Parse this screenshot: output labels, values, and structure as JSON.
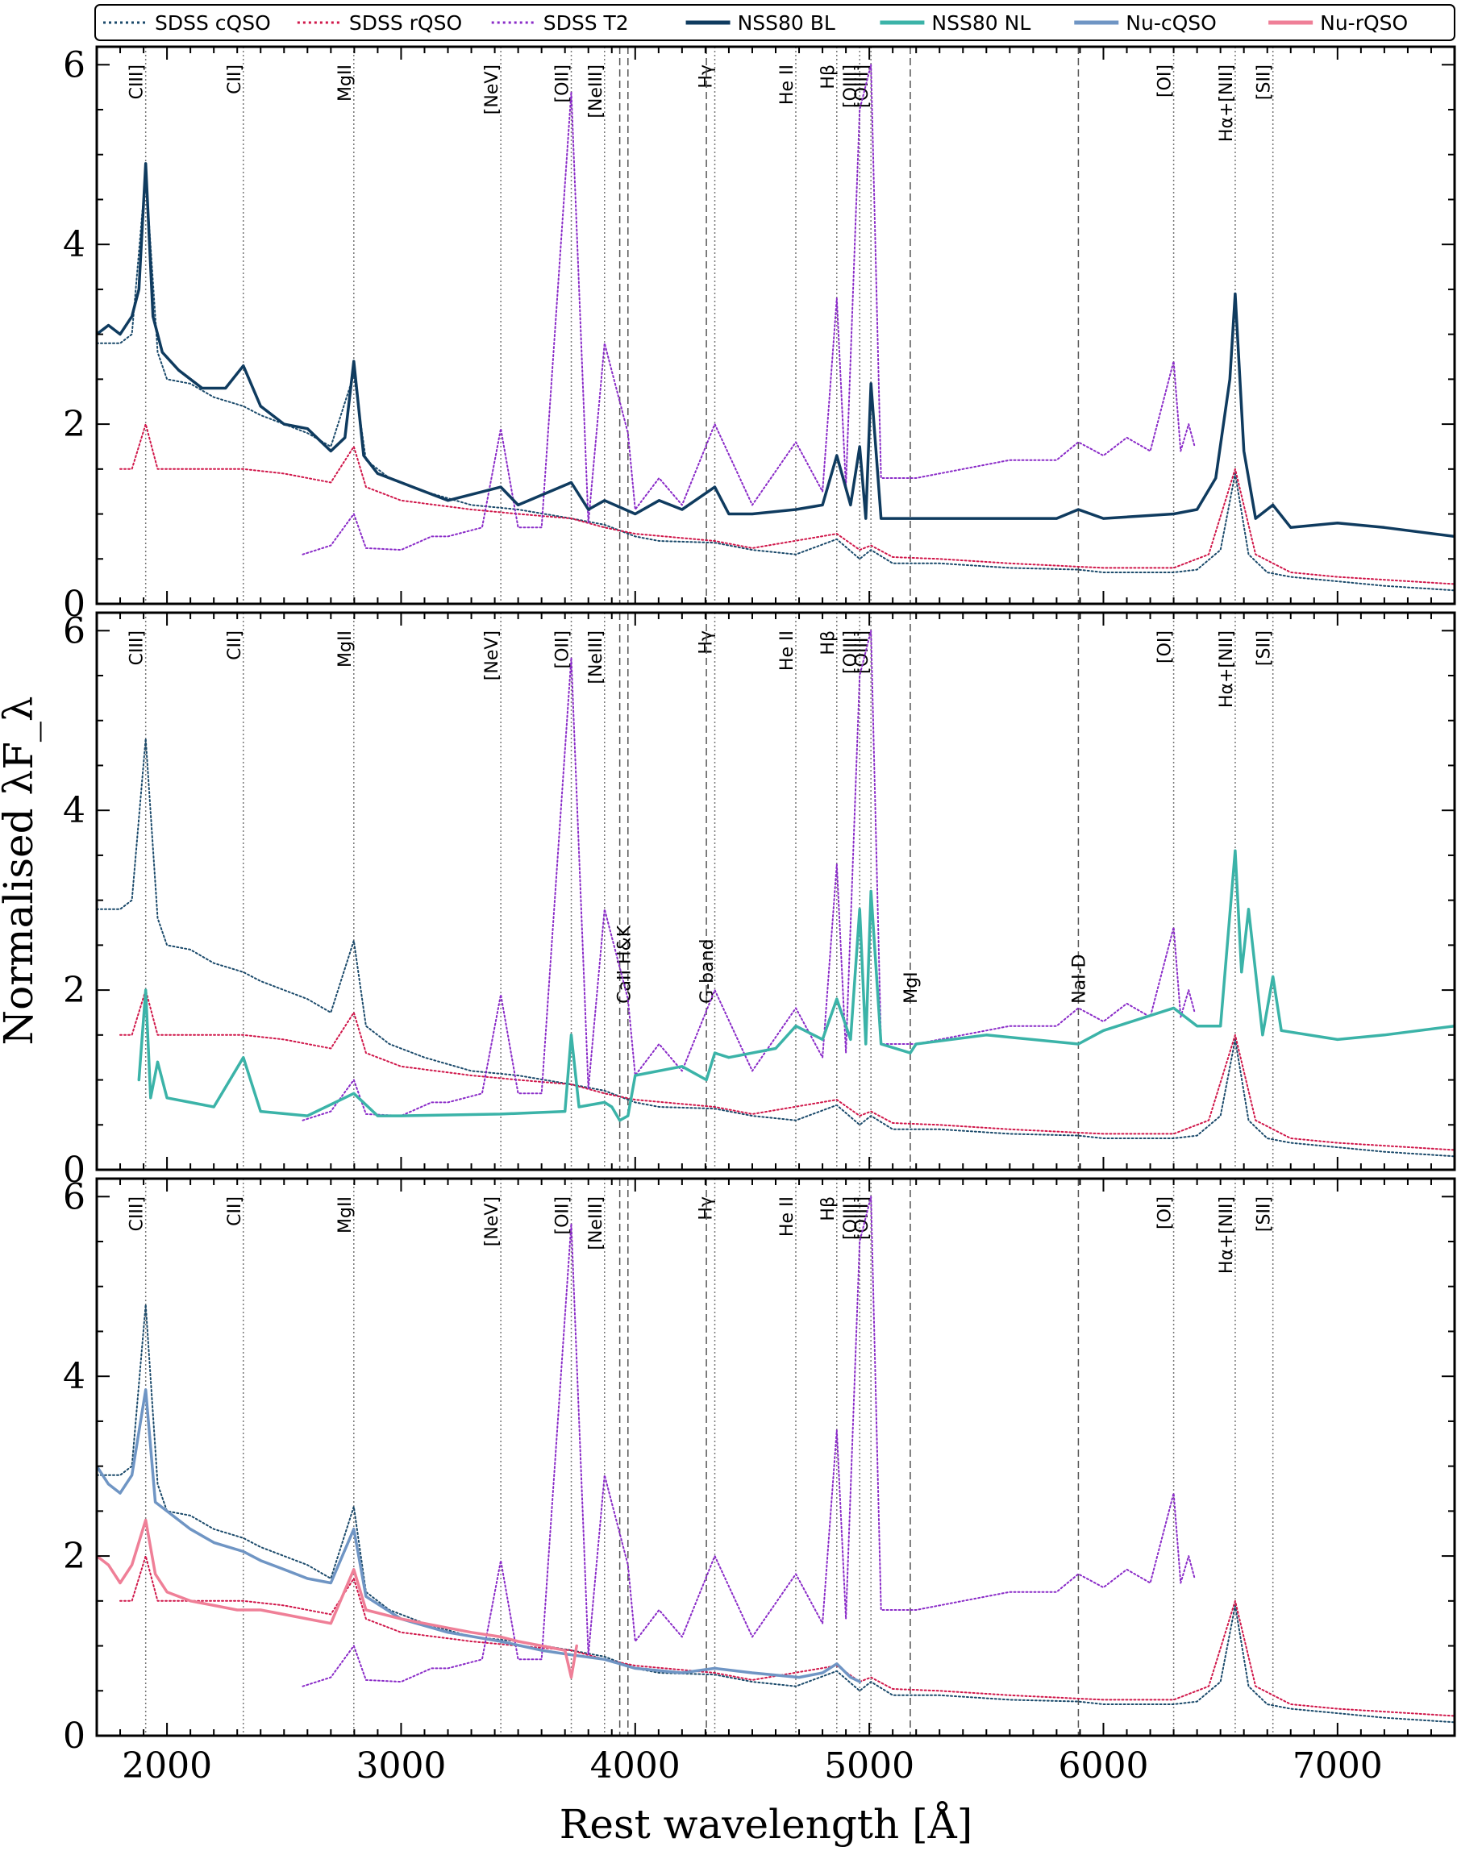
{
  "chart_data": {
    "type": "line",
    "xlabel": "Rest wavelength [Å]",
    "ylabel": "Normalised λF_λ",
    "xlim": [
      1700,
      7500
    ],
    "ylim": [
      0,
      6.2
    ],
    "x_ticks": [
      2000,
      3000,
      4000,
      5000,
      6000,
      7000
    ],
    "x_tick_labels": [
      "2000",
      "3000",
      "4000",
      "5000",
      "6000",
      "7000"
    ],
    "y_ticks": [
      0,
      2,
      4,
      6
    ],
    "y_tick_labels": [
      "0",
      "2",
      "4",
      "6"
    ],
    "legend": [
      {
        "key": "sdss_cqso",
        "label": "SDSS cQSO",
        "style": "dotted",
        "color": "#1b4a6b"
      },
      {
        "key": "sdss_rqso",
        "label": "SDSS rQSO",
        "style": "dotted",
        "color": "#d0174a"
      },
      {
        "key": "sdss_t2",
        "label": "SDSS T2",
        "style": "dotted",
        "color": "#8a2bc8"
      },
      {
        "key": "nss80_bl",
        "label": "NSS80 BL",
        "style": "solid",
        "color": "#0f3b5f"
      },
      {
        "key": "nss80_nl",
        "label": "NSS80 NL",
        "style": "solid",
        "color": "#3bb3a8"
      },
      {
        "key": "nu_cqso",
        "label": "Nu-cQSO",
        "style": "solid",
        "color": "#6f95c4"
      },
      {
        "key": "nu_rqso",
        "label": "Nu-rQSO",
        "style": "solid",
        "color": "#ef7f97"
      }
    ],
    "emission_lines": [
      {
        "label": "CIII]",
        "x": 1909
      },
      {
        "label": "CII]",
        "x": 2326
      },
      {
        "label": "MgII",
        "x": 2798
      },
      {
        "label": "[NeV]",
        "x": 3426
      },
      {
        "label": "[OII]",
        "x": 3727
      },
      {
        "label": "[NeIII]",
        "x": 3869
      },
      {
        "label": "Hγ",
        "x": 4340
      },
      {
        "label": "He II",
        "x": 4686
      },
      {
        "label": "Hβ",
        "x": 4861
      },
      {
        "label": "[OIII]",
        "x": 4959
      },
      {
        "label": "[OIII]",
        "x": 5007
      },
      {
        "label": "[OI]",
        "x": 6300
      },
      {
        "label": "Hα+[NII]",
        "x": 6563
      },
      {
        "label": "[SII]",
        "x": 6724
      }
    ],
    "absorption_lines": [
      3934,
      3969,
      4304,
      5175,
      5893
    ],
    "absorption_labels": [
      {
        "label": "CaII H&K",
        "x": 3951
      },
      {
        "label": "G-band",
        "x": 4304
      },
      {
        "label": "MgI",
        "x": 5175
      },
      {
        "label": "NaI-D",
        "x": 5893
      }
    ],
    "template_data": {
      "sdss_cqso": {
        "x": [
          1700,
          1800,
          1850,
          1909,
          1960,
          2000,
          2100,
          2200,
          2326,
          2400,
          2500,
          2600,
          2700,
          2798,
          2850,
          2950,
          3100,
          3300,
          3500,
          3727,
          3869,
          4000,
          4102,
          4340,
          4500,
          4686,
          4861,
          4959,
          5007,
          5100,
          5300,
          5600,
          5893,
          6000,
          6300,
          6400,
          6500,
          6563,
          6620,
          6700,
          6800,
          7000,
          7200,
          7500
        ],
        "y": [
          2.9,
          2.9,
          3.0,
          4.8,
          2.8,
          2.5,
          2.45,
          2.3,
          2.2,
          2.1,
          2.0,
          1.9,
          1.75,
          2.55,
          1.6,
          1.4,
          1.25,
          1.1,
          1.05,
          0.95,
          0.88,
          0.75,
          0.7,
          0.68,
          0.6,
          0.55,
          0.72,
          0.5,
          0.6,
          0.45,
          0.45,
          0.4,
          0.38,
          0.35,
          0.35,
          0.38,
          0.6,
          1.45,
          0.55,
          0.35,
          0.3,
          0.25,
          0.2,
          0.15
        ]
      },
      "sdss_rqso": {
        "x": [
          1800,
          1850,
          1909,
          1960,
          2000,
          2200,
          2326,
          2500,
          2700,
          2798,
          2850,
          3000,
          3300,
          3500,
          3727,
          3869,
          4000,
          4340,
          4500,
          4861,
          4959,
          5007,
          5100,
          5300,
          5600,
          6000,
          6300,
          6450,
          6563,
          6650,
          6800,
          7000,
          7500
        ],
        "y": [
          1.5,
          1.5,
          2.0,
          1.5,
          1.5,
          1.5,
          1.5,
          1.45,
          1.35,
          1.75,
          1.3,
          1.15,
          1.05,
          1.0,
          0.95,
          0.85,
          0.78,
          0.7,
          0.62,
          0.78,
          0.6,
          0.65,
          0.52,
          0.5,
          0.45,
          0.4,
          0.4,
          0.55,
          1.5,
          0.55,
          0.35,
          0.3,
          0.22
        ]
      },
      "sdss_t2": {
        "x": [
          2580,
          2700,
          2798,
          2850,
          3000,
          3130,
          3200,
          3346,
          3426,
          3500,
          3600,
          3727,
          3800,
          3869,
          3969,
          4000,
          4102,
          4200,
          4340,
          4500,
          4686,
          4800,
          4861,
          4900,
          4959,
          5007,
          5050,
          5200,
          5400,
          5600,
          5800,
          5893,
          6000,
          6100,
          6200,
          6300,
          6330,
          6364,
          6390
        ],
        "y": [
          0.55,
          0.65,
          1.0,
          0.62,
          0.6,
          0.75,
          0.75,
          0.85,
          1.95,
          0.85,
          0.85,
          5.7,
          0.9,
          2.9,
          1.9,
          1.05,
          1.4,
          1.1,
          2.0,
          1.1,
          1.8,
          1.25,
          3.4,
          1.3,
          5.5,
          6.0,
          1.4,
          1.4,
          1.5,
          1.6,
          1.6,
          1.8,
          1.65,
          1.85,
          1.7,
          2.7,
          1.7,
          2.0,
          1.75
        ]
      }
    },
    "panels": [
      {
        "panel": "top",
        "series": [
          {
            "key": "nss80_bl",
            "x": [
              1700,
              1750,
              1800,
              1850,
              1880,
              1909,
              1940,
              1980,
              2050,
              2150,
              2250,
              2326,
              2400,
              2500,
              2600,
              2700,
              2760,
              2798,
              2840,
              2900,
              3000,
              3200,
              3426,
              3500,
              3727,
              3800,
              3869,
              4000,
              4102,
              4200,
              4340,
              4400,
              4500,
              4686,
              4800,
              4861,
              4920,
              4959,
              4985,
              5007,
              5050,
              5200,
              5500,
              5800,
              5893,
              6000,
              6300,
              6400,
              6480,
              6540,
              6563,
              6600,
              6650,
              6724,
              6800,
              7000,
              7200,
              7500
            ],
            "y": [
              3.0,
              3.1,
              3.0,
              3.2,
              3.5,
              4.9,
              3.2,
              2.8,
              2.6,
              2.4,
              2.4,
              2.65,
              2.2,
              2.0,
              1.95,
              1.7,
              1.85,
              2.7,
              1.65,
              1.45,
              1.35,
              1.15,
              1.3,
              1.1,
              1.35,
              1.05,
              1.15,
              1.0,
              1.15,
              1.05,
              1.3,
              1.0,
              1.0,
              1.05,
              1.1,
              1.65,
              1.1,
              1.75,
              0.95,
              2.45,
              0.95,
              0.95,
              0.95,
              0.95,
              1.05,
              0.95,
              1.0,
              1.05,
              1.4,
              2.5,
              3.45,
              1.7,
              0.95,
              1.1,
              0.85,
              0.9,
              0.85,
              0.75
            ]
          }
        ]
      },
      {
        "panel": "middle",
        "series": [
          {
            "key": "nss80_nl",
            "x": [
              1880,
              1909,
              1930,
              1960,
              2000,
              2100,
              2200,
              2326,
              2400,
              2600,
              2798,
              2900,
              3000,
              3426,
              3700,
              3727,
              3760,
              3869,
              3900,
              3934,
              3969,
              4000,
              4200,
              4304,
              4340,
              4400,
              4600,
              4686,
              4800,
              4861,
              4920,
              4959,
              4985,
              5007,
              5050,
              5175,
              5200,
              5500,
              5893,
              6000,
              6300,
              6400,
              6500,
              6563,
              6590,
              6620,
              6680,
              6724,
              6760,
              7000,
              7200,
              7500
            ],
            "y": [
              1.0,
              2.0,
              0.8,
              1.2,
              0.8,
              0.75,
              0.7,
              1.25,
              0.65,
              0.6,
              0.85,
              0.6,
              0.6,
              0.62,
              0.65,
              1.5,
              0.7,
              0.75,
              0.7,
              0.55,
              0.6,
              1.05,
              1.15,
              1.0,
              1.3,
              1.25,
              1.35,
              1.6,
              1.45,
              1.9,
              1.45,
              2.9,
              1.4,
              3.1,
              1.4,
              1.3,
              1.4,
              1.5,
              1.4,
              1.55,
              1.8,
              1.6,
              1.6,
              3.55,
              2.2,
              2.9,
              1.5,
              2.15,
              1.55,
              1.45,
              1.5,
              1.6
            ]
          }
        ]
      },
      {
        "panel": "bottom",
        "series": [
          {
            "key": "nu_cqso",
            "x": [
              1700,
              1750,
              1800,
              1850,
              1909,
              1950,
              2000,
              2100,
              2200,
              2326,
              2400,
              2500,
              2600,
              2700,
              2798,
              2850,
              3000,
              3200,
              3426,
              3600,
              3727,
              3869,
              4000,
              4200,
              4340,
              4500,
              4700,
              4800,
              4861,
              4920,
              4960
            ],
            "y": [
              3.0,
              2.8,
              2.7,
              2.9,
              3.85,
              2.6,
              2.5,
              2.3,
              2.15,
              2.05,
              1.95,
              1.85,
              1.75,
              1.7,
              2.3,
              1.55,
              1.3,
              1.15,
              1.05,
              0.95,
              0.9,
              0.85,
              0.75,
              0.7,
              0.75,
              0.7,
              0.65,
              0.7,
              0.8,
              0.65,
              0.6
            ]
          },
          {
            "key": "nu_rqso",
            "x": [
              1700,
              1750,
              1800,
              1850,
              1909,
              1950,
              2000,
              2100,
              2200,
              2300,
              2400,
              2500,
              2600,
              2700,
              2798,
              2850,
              3000,
              3100,
              3200,
              3300,
              3426,
              3500,
              3600,
              3700,
              3727,
              3750
            ],
            "y": [
              2.0,
              1.9,
              1.7,
              1.9,
              2.4,
              1.8,
              1.6,
              1.5,
              1.45,
              1.4,
              1.4,
              1.35,
              1.3,
              1.25,
              1.85,
              1.4,
              1.3,
              1.25,
              1.2,
              1.15,
              1.1,
              1.05,
              1.0,
              0.95,
              0.65,
              1.0
            ]
          }
        ]
      }
    ]
  }
}
